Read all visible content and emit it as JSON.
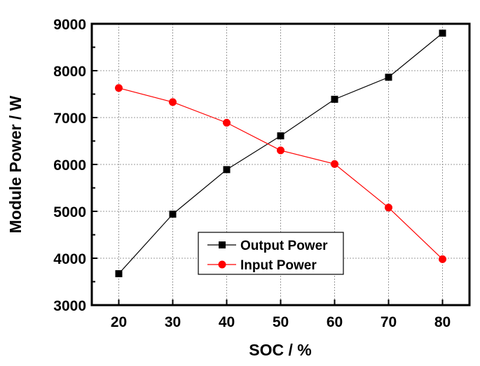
{
  "chart_data": {
    "type": "line",
    "title": "",
    "xlabel": "SOC / %",
    "ylabel": "Module Power / W",
    "xlim": [
      15,
      85
    ],
    "ylim": [
      3000,
      9000
    ],
    "xticks": [
      20,
      30,
      40,
      50,
      60,
      70,
      80
    ],
    "yticks": [
      3000,
      4000,
      5000,
      6000,
      7000,
      8000,
      9000
    ],
    "grid": true,
    "legend_position": "bottom-center",
    "x": [
      20,
      30,
      40,
      50,
      60,
      70,
      80
    ],
    "series": [
      {
        "name": "Output Power",
        "color": "#000000",
        "marker": "square",
        "values": [
          3670,
          4940,
          5890,
          6610,
          7390,
          7860,
          8800
        ]
      },
      {
        "name": "Input Power",
        "color": "#ff0000",
        "marker": "circle",
        "values": [
          7630,
          7330,
          6890,
          6300,
          6010,
          5080,
          3980
        ]
      }
    ]
  }
}
